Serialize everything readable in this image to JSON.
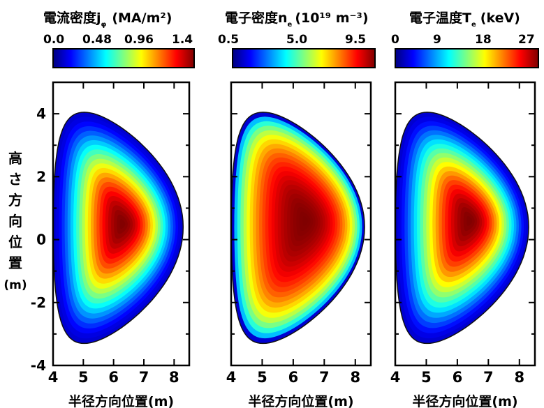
{
  "chart_data": [
    {
      "type": "heatmap",
      "title": "電流密度j",
      "title_sub": "φ",
      "unit": "(MA/m²)",
      "colorbar_ticks": [
        "0.0",
        "0.48",
        "0.96",
        "1.4"
      ],
      "value_range": [
        0.0,
        1.4
      ],
      "peak_value": 1.4,
      "peak_location": [
        6.3,
        0.5
      ],
      "profile_alpha": 1.6,
      "xlabel": "半径方向位置(m)",
      "ylabel": "高さ方向位置(m)",
      "xlim": [
        4,
        8.5
      ],
      "ylim": [
        -4,
        5
      ],
      "xticks": [
        "4",
        "5",
        "6",
        "7",
        "8"
      ],
      "yticks": [
        "4",
        "2",
        "0",
        "-2",
        "-4"
      ]
    },
    {
      "type": "heatmap",
      "title": "電子密度n",
      "title_sub": "e",
      "unit": "(10¹⁹ m⁻³)",
      "colorbar_ticks": [
        "0.5",
        "5.0",
        "9.5"
      ],
      "value_range": [
        0.5,
        9.5
      ],
      "peak_value": 9.5,
      "peak_location": [
        6.4,
        0.6
      ],
      "profile_alpha": 0.55,
      "xlabel": "半径方向位置(m)",
      "xlim": [
        4,
        8.5
      ],
      "ylim": [
        -4,
        5
      ],
      "xticks": [
        "4",
        "5",
        "6",
        "7",
        "8"
      ]
    },
    {
      "type": "heatmap",
      "title": "電子温度T",
      "title_sub": "e",
      "unit": "(keV)",
      "colorbar_ticks": [
        "0",
        "9",
        "18",
        "27"
      ],
      "value_range": [
        0,
        27
      ],
      "peak_value": 27,
      "peak_location": [
        6.4,
        0.6
      ],
      "profile_alpha": 1.5,
      "xlabel": "半径方向位置(m)",
      "xlim": [
        4,
        8.5
      ],
      "ylim": [
        -4,
        5
      ],
      "xticks": [
        "4",
        "5",
        "6",
        "7",
        "8"
      ]
    }
  ],
  "colormap": "jet",
  "plasma_boundary": {
    "top": [
      5.2,
      4.05
    ],
    "outer_midplane": [
      8.3,
      0.4
    ],
    "bottom": [
      5.1,
      -3.3
    ],
    "inner": [
      4.0,
      0.3
    ]
  }
}
